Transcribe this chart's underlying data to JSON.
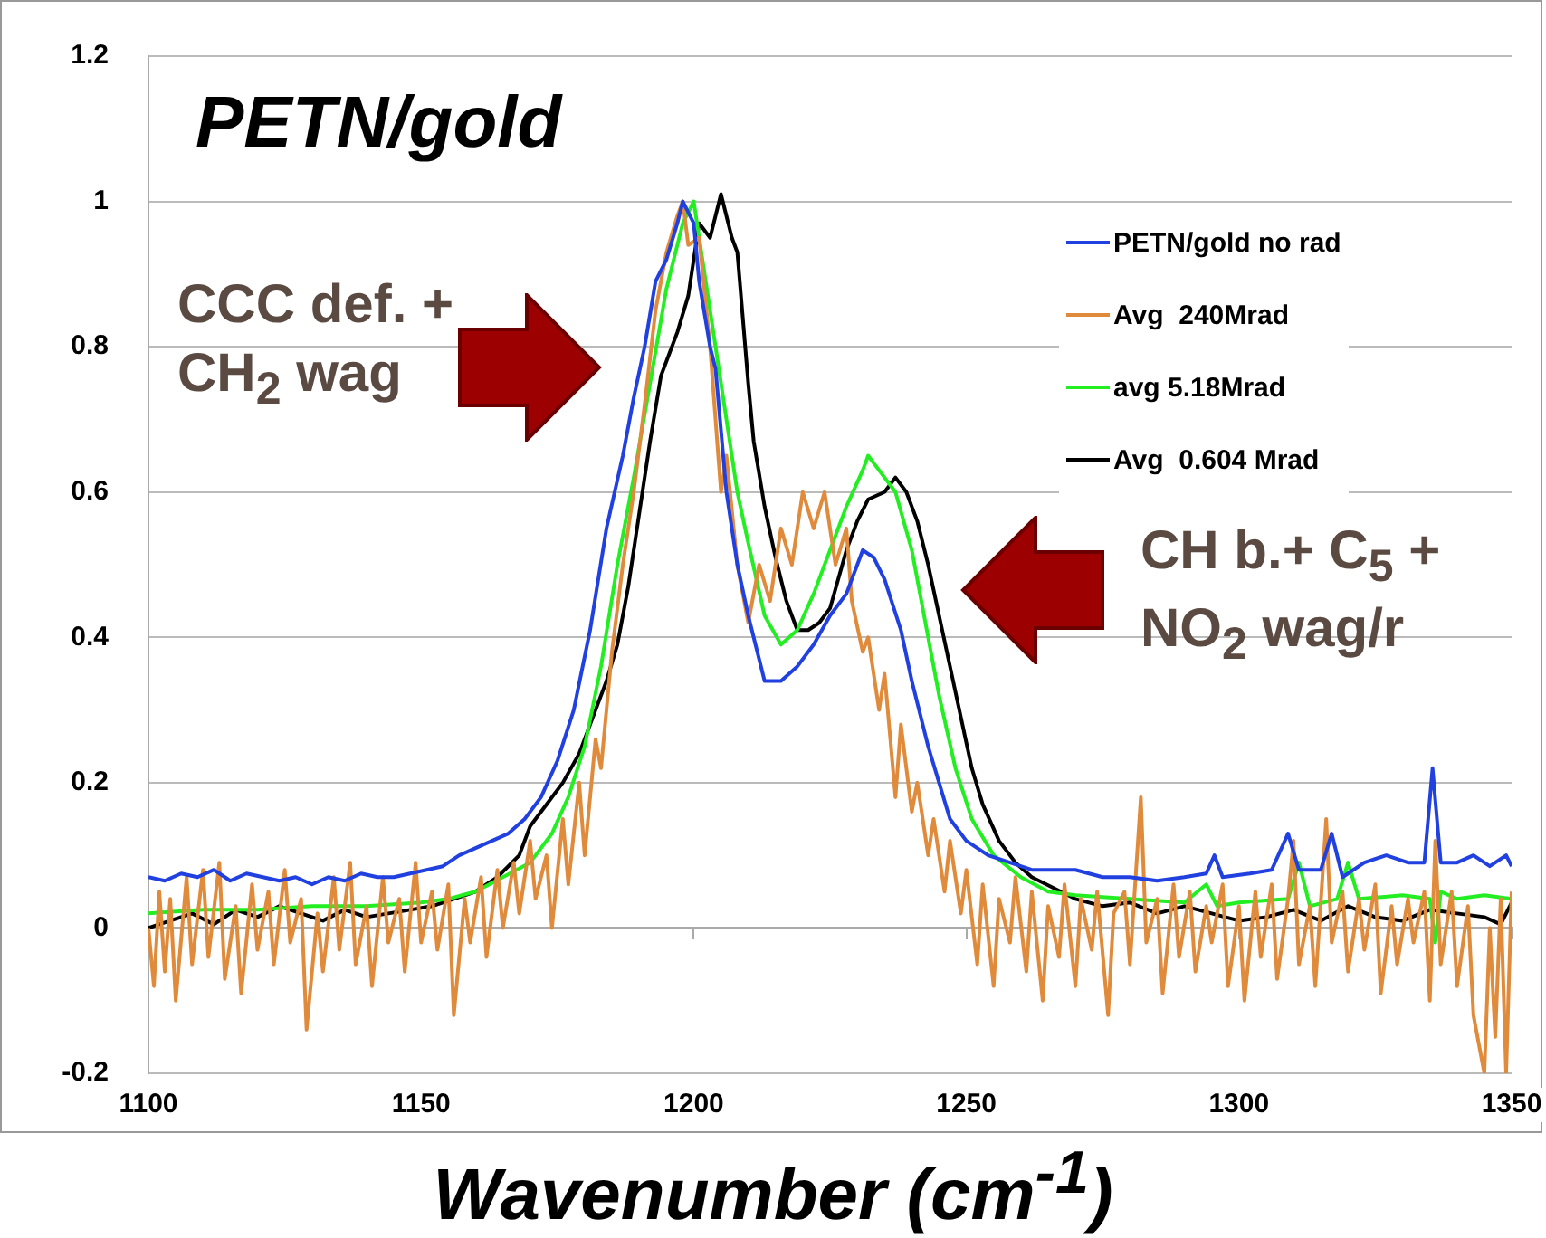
{
  "chart_data": {
    "type": "line",
    "title": "PETN/gold",
    "xlabel": "Wavenumber (cm$^{-1}$)",
    "xlim": [
      1100,
      1350
    ],
    "xticks": [
      1100,
      1150,
      1200,
      1250,
      1300,
      1350
    ],
    "ylim": [
      -0.2,
      1.2
    ],
    "yticks": [
      -0.2,
      0,
      0.2,
      0.4,
      0.6,
      0.8,
      1,
      1.2
    ],
    "grid": "y",
    "legend": "top right",
    "marker": "none",
    "line_style": "solid",
    "annotations": [
      "CCC def. +\nCH$_{2}$ wag",
      "CH b.+ C$_{5}$ +\nNO$_{2}$ wag/r"
    ],
    "series": [
      {
        "name": "PETN/gold no rad",
        "color": "#2040e0",
        "x": [
          1100,
          1103,
          1106,
          1109,
          1112,
          1115,
          1118,
          1121,
          1124,
          1127,
          1130,
          1133,
          1136,
          1139,
          1142,
          1145,
          1148,
          1151,
          1154,
          1157,
          1160,
          1163,
          1166,
          1169,
          1172,
          1175,
          1178,
          1181,
          1184,
          1187,
          1189,
          1191,
          1193,
          1195,
          1197,
          1198,
          1200,
          1201,
          1203,
          1204,
          1206,
          1208,
          1210,
          1213,
          1216,
          1219,
          1222,
          1225,
          1228,
          1231,
          1233,
          1235,
          1238,
          1240,
          1243,
          1245,
          1247,
          1250,
          1254,
          1258,
          1262,
          1266,
          1270,
          1275,
          1280,
          1285,
          1290,
          1294,
          1295.5,
          1297,
          1302,
          1306,
          1309,
          1311,
          1315,
          1317,
          1319,
          1323,
          1327,
          1331,
          1334,
          1335.5,
          1337,
          1340,
          1343,
          1346,
          1349,
          1350
        ],
        "values": [
          0.07,
          0.065,
          0.075,
          0.07,
          0.08,
          0.065,
          0.075,
          0.07,
          0.065,
          0.07,
          0.06,
          0.07,
          0.065,
          0.075,
          0.07,
          0.07,
          0.075,
          0.08,
          0.085,
          0.1,
          0.11,
          0.12,
          0.13,
          0.15,
          0.18,
          0.23,
          0.3,
          0.41,
          0.55,
          0.65,
          0.73,
          0.8,
          0.89,
          0.92,
          0.97,
          1.0,
          0.97,
          0.89,
          0.8,
          0.77,
          0.6,
          0.5,
          0.43,
          0.34,
          0.34,
          0.36,
          0.39,
          0.43,
          0.46,
          0.52,
          0.51,
          0.48,
          0.41,
          0.34,
          0.25,
          0.2,
          0.15,
          0.12,
          0.1,
          0.09,
          0.08,
          0.08,
          0.08,
          0.07,
          0.07,
          0.065,
          0.07,
          0.075,
          0.1,
          0.07,
          0.075,
          0.08,
          0.13,
          0.08,
          0.08,
          0.13,
          0.07,
          0.09,
          0.1,
          0.09,
          0.09,
          0.22,
          0.09,
          0.09,
          0.1,
          0.085,
          0.1,
          0.085
        ]
      },
      {
        "name": "Avg  240Mrad",
        "color": "#e08a3c",
        "x": [
          1100,
          1101,
          1102,
          1103,
          1104,
          1105,
          1107,
          1108,
          1110,
          1111,
          1113,
          1114,
          1116,
          1117,
          1119,
          1120,
          1122,
          1123,
          1125,
          1126,
          1128,
          1129,
          1131,
          1132,
          1134,
          1135,
          1137,
          1138,
          1140,
          1141,
          1143,
          1144,
          1146,
          1147,
          1149,
          1150,
          1152,
          1153,
          1155,
          1156,
          1158,
          1159,
          1161,
          1162,
          1164,
          1165,
          1167,
          1168,
          1170,
          1171,
          1173,
          1174,
          1176,
          1177,
          1179,
          1180,
          1182,
          1183,
          1185,
          1187,
          1189,
          1191,
          1193,
          1195,
          1197,
          1198,
          1199,
          1201,
          1203,
          1205,
          1206,
          1208,
          1210,
          1212,
          1214,
          1216,
          1218,
          1220,
          1222,
          1224,
          1226,
          1228,
          1229,
          1231,
          1232,
          1234,
          1235,
          1237,
          1238,
          1240,
          1241,
          1243,
          1244,
          1246,
          1247,
          1249,
          1250,
          1252,
          1253,
          1255,
          1256,
          1258,
          1259,
          1261,
          1262,
          1264,
          1265,
          1267,
          1268,
          1270,
          1271,
          1273,
          1274,
          1276,
          1277,
          1279,
          1280,
          1282,
          1283,
          1285,
          1286,
          1288,
          1289,
          1291,
          1292,
          1294,
          1295,
          1297,
          1298,
          1300,
          1301,
          1303,
          1304,
          1306,
          1307,
          1309,
          1310,
          1311,
          1313,
          1314,
          1316,
          1317,
          1319,
          1320,
          1322,
          1323,
          1325,
          1326,
          1328,
          1329,
          1331,
          1332,
          1334,
          1335,
          1336,
          1337,
          1339,
          1340,
          1342,
          1343,
          1345,
          1346,
          1347,
          1348,
          1349,
          1350
        ],
        "values": [
          0.0,
          -0.08,
          0.05,
          -0.06,
          0.04,
          -0.1,
          0.07,
          -0.05,
          0.08,
          -0.04,
          0.09,
          -0.07,
          0.03,
          -0.09,
          0.06,
          -0.03,
          0.05,
          -0.05,
          0.08,
          -0.02,
          0.04,
          -0.14,
          0.02,
          -0.06,
          0.07,
          -0.03,
          0.09,
          -0.05,
          0.03,
          -0.08,
          0.07,
          -0.02,
          0.04,
          -0.06,
          0.09,
          -0.02,
          0.05,
          -0.03,
          0.06,
          -0.12,
          0.04,
          -0.02,
          0.07,
          -0.04,
          0.08,
          0.0,
          0.09,
          0.02,
          0.12,
          0.04,
          0.1,
          0.0,
          0.15,
          0.06,
          0.2,
          0.1,
          0.26,
          0.22,
          0.38,
          0.5,
          0.6,
          0.72,
          0.85,
          0.93,
          0.98,
          1.0,
          0.94,
          0.95,
          0.8,
          0.6,
          0.65,
          0.5,
          0.42,
          0.5,
          0.45,
          0.55,
          0.5,
          0.6,
          0.55,
          0.6,
          0.5,
          0.55,
          0.45,
          0.38,
          0.4,
          0.3,
          0.35,
          0.18,
          0.28,
          0.16,
          0.2,
          0.1,
          0.15,
          0.05,
          0.12,
          0.02,
          0.08,
          -0.05,
          0.06,
          -0.08,
          0.04,
          -0.02,
          0.07,
          -0.06,
          0.05,
          -0.1,
          0.03,
          -0.04,
          0.06,
          -0.08,
          0.04,
          -0.03,
          0.05,
          -0.12,
          0.02,
          0.05,
          -0.05,
          0.18,
          -0.02,
          0.04,
          -0.09,
          0.06,
          -0.04,
          0.05,
          -0.06,
          0.03,
          -0.02,
          0.06,
          -0.08,
          0.03,
          -0.1,
          0.05,
          -0.04,
          0.06,
          -0.07,
          0.04,
          0.12,
          -0.05,
          0.03,
          -0.08,
          0.15,
          -0.02,
          0.05,
          -0.06,
          0.04,
          -0.03,
          0.06,
          -0.09,
          0.03,
          -0.05,
          0.04,
          -0.02,
          0.05,
          -0.1,
          0.12,
          -0.05,
          0.05,
          -0.08,
          0.03,
          -0.12,
          -0.2,
          0.0,
          -0.15,
          0.04,
          -0.2,
          0.05
        ]
      },
      {
        "name": "avg 5.18Mrad",
        "color": "#22ee22",
        "x": [
          1100,
          1110,
          1120,
          1130,
          1140,
          1150,
          1155,
          1160,
          1165,
          1170,
          1174,
          1177,
          1180,
          1183,
          1186,
          1189,
          1192,
          1195,
          1198,
          1200,
          1202,
          1204,
          1206,
          1208,
          1210,
          1213,
          1216,
          1219,
          1222,
          1225,
          1228,
          1231,
          1232,
          1234,
          1237,
          1240,
          1243,
          1245,
          1248,
          1251,
          1255,
          1260,
          1265,
          1270,
          1280,
          1290,
          1294,
          1296,
          1300,
          1309,
          1311,
          1313,
          1318,
          1320,
          1322,
          1330,
          1335,
          1336,
          1337,
          1340,
          1345,
          1350
        ],
        "values": [
          0.02,
          0.025,
          0.025,
          0.03,
          0.03,
          0.035,
          0.04,
          0.05,
          0.07,
          0.09,
          0.13,
          0.18,
          0.25,
          0.36,
          0.5,
          0.62,
          0.75,
          0.88,
          0.97,
          1.0,
          0.9,
          0.8,
          0.7,
          0.6,
          0.53,
          0.43,
          0.39,
          0.41,
          0.46,
          0.52,
          0.58,
          0.63,
          0.65,
          0.63,
          0.6,
          0.52,
          0.4,
          0.32,
          0.22,
          0.15,
          0.1,
          0.07,
          0.05,
          0.045,
          0.04,
          0.035,
          0.06,
          0.03,
          0.035,
          0.04,
          0.09,
          0.03,
          0.04,
          0.09,
          0.04,
          0.045,
          0.04,
          -0.02,
          0.05,
          0.04,
          0.045,
          0.04
        ]
      },
      {
        "name": "Avg  0.604 Mrad",
        "color": "#000000",
        "x": [
          1100,
          1104,
          1108,
          1112,
          1116,
          1120,
          1124,
          1128,
          1132,
          1136,
          1140,
          1144,
          1148,
          1152,
          1156,
          1160,
          1164,
          1168,
          1170,
          1173,
          1176,
          1179,
          1181,
          1184,
          1186,
          1188,
          1190,
          1192,
          1194,
          1197,
          1199,
          1201,
          1203,
          1205,
          1207,
          1208,
          1210,
          1211,
          1213,
          1215,
          1217,
          1219,
          1221,
          1223,
          1225,
          1228,
          1230,
          1232,
          1235,
          1237,
          1239,
          1241,
          1243,
          1245,
          1247,
          1249,
          1251,
          1253,
          1256,
          1259,
          1262,
          1266,
          1270,
          1275,
          1280,
          1285,
          1290,
          1295,
          1300,
          1305,
          1310,
          1315,
          1320,
          1325,
          1330,
          1335,
          1340,
          1345,
          1348,
          1350
        ],
        "values": [
          0.0,
          0.01,
          0.02,
          0.005,
          0.025,
          0.015,
          0.03,
          0.02,
          0.01,
          0.025,
          0.015,
          0.02,
          0.025,
          0.03,
          0.04,
          0.05,
          0.07,
          0.1,
          0.14,
          0.17,
          0.2,
          0.24,
          0.28,
          0.34,
          0.39,
          0.47,
          0.57,
          0.67,
          0.76,
          0.82,
          0.87,
          0.97,
          0.95,
          1.01,
          0.95,
          0.93,
          0.75,
          0.67,
          0.58,
          0.51,
          0.45,
          0.41,
          0.41,
          0.42,
          0.44,
          0.52,
          0.56,
          0.59,
          0.6,
          0.62,
          0.6,
          0.56,
          0.5,
          0.43,
          0.36,
          0.29,
          0.22,
          0.17,
          0.12,
          0.09,
          0.07,
          0.055,
          0.04,
          0.03,
          0.035,
          0.02,
          0.03,
          0.02,
          0.01,
          0.015,
          0.025,
          0.01,
          0.03,
          0.015,
          0.01,
          0.025,
          0.02,
          0.015,
          0.005,
          0.035
        ]
      }
    ]
  }
}
